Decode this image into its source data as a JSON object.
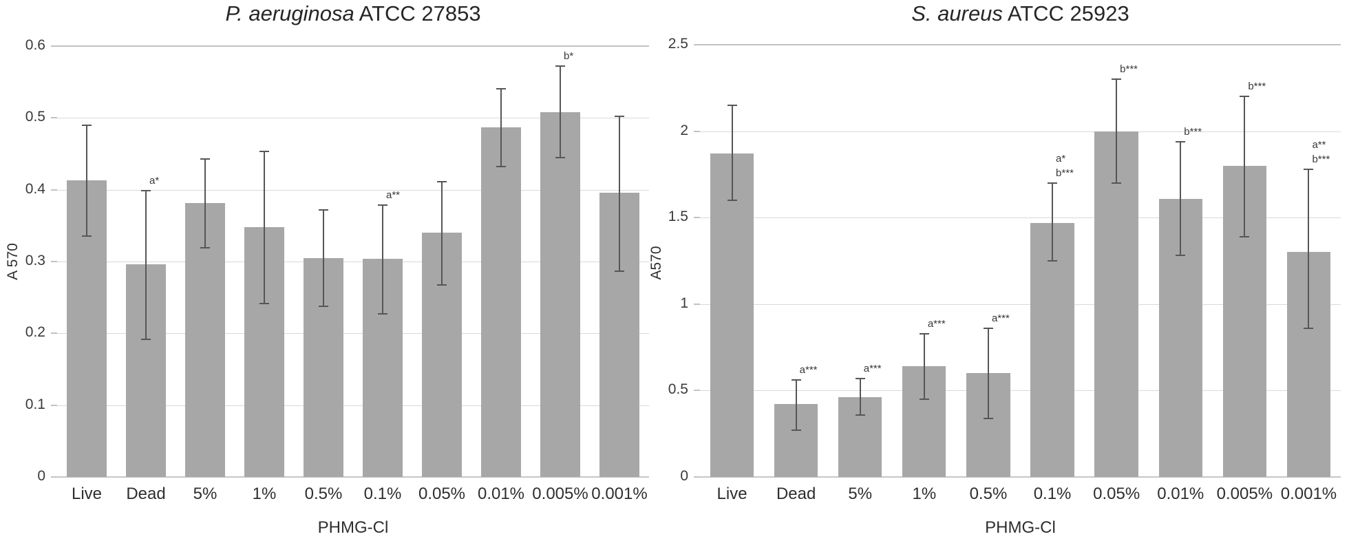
{
  "figure": {
    "description_xlabel": "PHMG-Cl"
  },
  "chart_data": [
    {
      "type": "bar",
      "title_italic": "P. aeruginosa",
      "title_rest": " ATCC 27853",
      "ylabel": "A 570",
      "xlabel": "PHMG-Cl",
      "ylim": [
        0,
        0.6
      ],
      "grid": true,
      "legend_position": "none",
      "yticks": [
        0,
        0.1,
        0.2,
        0.3,
        0.4,
        0.5,
        0.6
      ],
      "ytick_labels": [
        "0",
        "0.1",
        "0.2",
        "0.3",
        "0.4",
        "0.5",
        "0.6"
      ],
      "categories": [
        "Live",
        "Dead",
        "5%",
        "1%",
        "0.5%",
        "0.1%",
        "0.05%",
        "0.01%",
        "0.005%",
        "0.001%"
      ],
      "values": [
        0.413,
        0.296,
        0.381,
        0.348,
        0.305,
        0.304,
        0.34,
        0.487,
        0.508,
        0.396
      ],
      "error_high": [
        0.49,
        0.399,
        0.443,
        0.453,
        0.372,
        0.379,
        0.411,
        0.541,
        0.572,
        0.502
      ],
      "error_low": [
        0.335,
        0.192,
        0.319,
        0.242,
        0.238,
        0.227,
        0.267,
        0.432,
        0.445,
        0.287
      ],
      "annotations": [
        [],
        [
          "a*"
        ],
        [],
        [],
        [],
        [
          "a**"
        ],
        [],
        [],
        [
          "b*"
        ],
        []
      ],
      "bar_color": "#a7a7a7",
      "error_color": "#565656",
      "grid_color": "#d9d9d9",
      "grid_major_color": "#c2c2c2",
      "axis_color": "#c6c6c6"
    },
    {
      "type": "bar",
      "title_italic": "S. aureus",
      "title_rest": " ATCC 25923",
      "ylabel": "A570",
      "xlabel": "PHMG-Cl",
      "ylim": [
        0,
        2.5
      ],
      "grid": true,
      "legend_position": "none",
      "yticks": [
        0,
        0.5,
        1,
        1.5,
        2,
        2.5
      ],
      "ytick_labels": [
        "0",
        "0.5",
        "1",
        "1.5",
        "2",
        "2.5"
      ],
      "categories": [
        "Live",
        "Dead",
        "5%",
        "1%",
        "0.5%",
        "0.1%",
        "0.05%",
        "0.01%",
        "0.005%",
        "0.001%"
      ],
      "values": [
        1.87,
        0.42,
        0.46,
        0.64,
        0.6,
        1.47,
        2.0,
        1.61,
        1.8,
        1.3
      ],
      "error_high": [
        2.15,
        0.56,
        0.57,
        0.83,
        0.86,
        1.7,
        2.3,
        1.94,
        2.2,
        1.78
      ],
      "error_low": [
        1.6,
        0.27,
        0.36,
        0.45,
        0.34,
        1.25,
        1.7,
        1.28,
        1.39,
        0.86
      ],
      "annotations": [
        [],
        [
          "a***"
        ],
        [
          "a***"
        ],
        [
          "a***"
        ],
        [
          "a***"
        ],
        [
          "a*",
          "b***"
        ],
        [
          "b***"
        ],
        [
          "b***"
        ],
        [
          "b***"
        ],
        [
          "a**",
          "b***"
        ]
      ],
      "bar_color": "#a7a7a7",
      "error_color": "#565656",
      "grid_color": "#d9d9d9",
      "grid_major_color": "#c2c2c2",
      "axis_color": "#c6c6c6"
    }
  ]
}
